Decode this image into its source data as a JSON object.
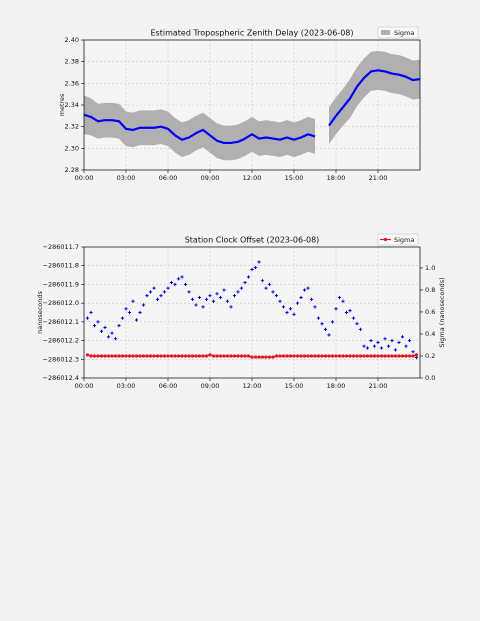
{
  "chart_data": [
    {
      "type": "line",
      "title": "Estimated Tropospheric Zenith Delay (2023-06-08)",
      "ylabel": "metres",
      "x": [
        0,
        0.5,
        1,
        1.5,
        2,
        2.5,
        3,
        3.5,
        4,
        4.5,
        5,
        5.5,
        6,
        6.5,
        7,
        7.5,
        8,
        8.5,
        9,
        9.5,
        10,
        10.5,
        11,
        11.5,
        12,
        12.5,
        13,
        13.5,
        14,
        14.5,
        15,
        15.5,
        16,
        16.5,
        17,
        17.5,
        18,
        18.5,
        19,
        19.5,
        20,
        20.5,
        21,
        21.5,
        22,
        22.5,
        23,
        23.5,
        24
      ],
      "series": [
        {
          "color": "#0000ff",
          "values": [
            2.331,
            2.329,
            2.325,
            2.326,
            2.326,
            2.325,
            2.318,
            2.317,
            2.319,
            2.319,
            2.319,
            2.32,
            2.318,
            2.312,
            2.308,
            2.31,
            2.314,
            2.317,
            2.312,
            2.307,
            2.305,
            2.305,
            2.306,
            2.309,
            2.313,
            2.309,
            2.31,
            2.309,
            2.308,
            2.31,
            2.308,
            2.31,
            2.313,
            2.311,
            null,
            2.321,
            2.33,
            2.338,
            2.346,
            2.357,
            2.365,
            2.371,
            2.372,
            2.371,
            2.369,
            2.368,
            2.366,
            2.363,
            2.364
          ]
        },
        {
          "name": "Sigma",
          "style": "band",
          "color": "#b0b0b0",
          "values": [
            0.018,
            0.017,
            0.016,
            0.016,
            0.016,
            0.016,
            0.016,
            0.016,
            0.016,
            0.016,
            0.016,
            0.016,
            0.016,
            0.016,
            0.016,
            0.016,
            0.016,
            0.016,
            0.016,
            0.016,
            0.016,
            0.016,
            0.016,
            0.016,
            0.016,
            0.016,
            0.016,
            0.016,
            0.016,
            0.016,
            0.016,
            0.016,
            0.016,
            0.016,
            null,
            0.017,
            0.017,
            0.017,
            0.018,
            0.018,
            0.018,
            0.018,
            0.018,
            0.018,
            0.018,
            0.018,
            0.018,
            0.018,
            0.018
          ]
        }
      ],
      "xlim": [
        0,
        24
      ],
      "xticks": [
        {
          "value": 0,
          "label": "00:00"
        },
        {
          "value": 3,
          "label": "03:00"
        },
        {
          "value": 6,
          "label": "06:00"
        },
        {
          "value": 9,
          "label": "09:00"
        },
        {
          "value": 12,
          "label": "12:00"
        },
        {
          "value": 15,
          "label": "15:00"
        },
        {
          "value": 18,
          "label": "18:00"
        },
        {
          "value": 21,
          "label": "21:00"
        }
      ],
      "ylim": [
        2.28,
        2.4
      ],
      "yticks": [
        2.28,
        {
          "value": 2.3,
          "label": "2.30"
        },
        2.32,
        2.34,
        2.36,
        2.38,
        {
          "value": 2.4,
          "label": "2.40"
        }
      ],
      "grid": true,
      "legend": "upper right"
    },
    {
      "type": "scatter",
      "title": "Station Clock Offset (2023-06-08)",
      "ylabel": "nanoseconds",
      "y2label": "Sigma (nanoseconds)",
      "x": [
        0.25,
        0.5,
        0.75,
        1,
        1.25,
        1.5,
        1.75,
        2,
        2.25,
        2.5,
        2.75,
        3,
        3.25,
        3.5,
        3.75,
        4,
        4.25,
        4.5,
        4.75,
        5,
        5.25,
        5.5,
        5.75,
        6,
        6.25,
        6.5,
        6.75,
        7,
        7.25,
        7.5,
        7.75,
        8,
        8.25,
        8.5,
        8.75,
        9,
        9.25,
        9.5,
        9.75,
        10,
        10.25,
        10.5,
        10.75,
        11,
        11.25,
        11.5,
        11.75,
        12,
        12.25,
        12.5,
        12.75,
        13,
        13.25,
        13.5,
        13.75,
        14,
        14.25,
        14.5,
        14.75,
        15,
        15.25,
        15.5,
        15.75,
        16,
        16.25,
        16.5,
        16.75,
        17,
        17.25,
        17.5,
        17.75,
        18,
        18.25,
        18.5,
        18.75,
        19,
        19.25,
        19.5,
        19.75,
        20,
        20.25,
        20.5,
        20.75,
        21,
        21.25,
        21.5,
        21.75,
        22,
        22.25,
        22.5,
        22.75,
        23,
        23.25,
        23.5,
        23.75
      ],
      "series": [
        {
          "color": "#0000ff",
          "values": [
            -286012.08,
            -286012.05,
            -286012.12,
            -286012.1,
            -286012.15,
            -286012.13,
            -286012.18,
            -286012.16,
            -286012.19,
            -286012.12,
            -286012.08,
            -286012.03,
            -286012.05,
            -286011.99,
            -286012.09,
            -286012.05,
            -286012.01,
            -286011.96,
            -286011.94,
            -286011.92,
            -286011.98,
            -286011.96,
            -286011.94,
            -286011.92,
            -286011.89,
            -286011.9,
            -286011.87,
            -286011.86,
            -286011.9,
            -286011.94,
            -286011.98,
            -286012.01,
            -286011.97,
            -286012.02,
            -286011.98,
            -286011.96,
            -286011.99,
            -286011.95,
            -286011.97,
            -286011.93,
            -286011.99,
            -286012.02,
            -286011.96,
            -286011.94,
            -286011.92,
            -286011.89,
            -286011.86,
            -286011.82,
            -286011.81,
            -286011.78,
            -286011.88,
            -286011.92,
            -286011.9,
            -286011.94,
            -286011.96,
            -286011.99,
            -286012.02,
            -286012.05,
            -286012.03,
            -286012.06,
            -286012.0,
            -286011.97,
            -286011.93,
            -286011.92,
            -286011.98,
            -286012.02,
            -286012.08,
            -286012.11,
            -286012.14,
            -286012.17,
            -286012.1,
            -286012.03,
            -286011.97,
            -286011.99,
            -286012.05,
            -286012.04,
            -286012.08,
            -286012.11,
            -286012.14,
            -286012.23,
            -286012.24,
            -286012.2,
            -286012.23,
            -286012.21,
            -286012.24,
            -286012.19,
            -286012.23,
            -286012.2,
            -286012.25,
            -286012.21,
            -286012.18,
            -286012.23,
            -286012.2,
            -286012.26,
            -286012.29
          ]
        },
        {
          "name": "Sigma",
          "axis": "y2",
          "color": "#e8141c",
          "values": [
            0.21,
            0.2,
            0.2,
            0.2,
            0.2,
            0.2,
            0.2,
            0.2,
            0.2,
            0.2,
            0.2,
            0.2,
            0.2,
            0.2,
            0.2,
            0.2,
            0.2,
            0.2,
            0.2,
            0.2,
            0.2,
            0.2,
            0.2,
            0.2,
            0.2,
            0.2,
            0.2,
            0.2,
            0.2,
            0.2,
            0.2,
            0.2,
            0.2,
            0.2,
            0.2,
            0.21,
            0.2,
            0.2,
            0.2,
            0.2,
            0.2,
            0.2,
            0.2,
            0.2,
            0.2,
            0.2,
            0.2,
            0.19,
            0.19,
            0.19,
            0.19,
            0.19,
            0.19,
            0.19,
            0.2,
            0.2,
            0.2,
            0.2,
            0.2,
            0.2,
            0.2,
            0.2,
            0.2,
            0.2,
            0.2,
            0.2,
            0.2,
            0.2,
            0.2,
            0.2,
            0.2,
            0.2,
            0.2,
            0.2,
            0.2,
            0.2,
            0.2,
            0.2,
            0.2,
            0.2,
            0.2,
            0.2,
            0.2,
            0.2,
            0.2,
            0.2,
            0.2,
            0.2,
            0.2,
            0.2,
            0.2,
            0.2,
            0.2,
            0.2,
            0.21
          ]
        }
      ],
      "xlim": [
        0,
        24
      ],
      "xticks": [
        {
          "value": 0,
          "label": "00:00"
        },
        {
          "value": 3,
          "label": "03:00"
        },
        {
          "value": 6,
          "label": "06:00"
        },
        {
          "value": 9,
          "label": "09:00"
        },
        {
          "value": 12,
          "label": "12:00"
        },
        {
          "value": 15,
          "label": "15:00"
        },
        {
          "value": 18,
          "label": "18:00"
        },
        {
          "value": 21,
          "label": "21:00"
        }
      ],
      "ylim": [
        -286012.4,
        -286011.7
      ],
      "yticks": [
        {
          "value": -286011.7,
          "label": "−286011.7"
        },
        {
          "value": -286011.8,
          "label": "−286011.8"
        },
        {
          "value": -286011.9,
          "label": "−286011.9"
        },
        {
          "value": -286012.0,
          "label": "−286012.0"
        },
        {
          "value": -286012.1,
          "label": "−286012.1"
        },
        {
          "value": -286012.2,
          "label": "−286012.2"
        },
        {
          "value": -286012.3,
          "label": "−286012.3"
        },
        {
          "value": -286012.4,
          "label": "−286012.4"
        }
      ],
      "y2lim": [
        0,
        1.19
      ],
      "y2ticks": [
        {
          "value": 0,
          "label": "0.0"
        },
        0.2,
        0.4,
        0.6,
        0.8,
        {
          "value": 1,
          "label": "1.0"
        }
      ],
      "grid": true,
      "legend": "upper right"
    }
  ]
}
